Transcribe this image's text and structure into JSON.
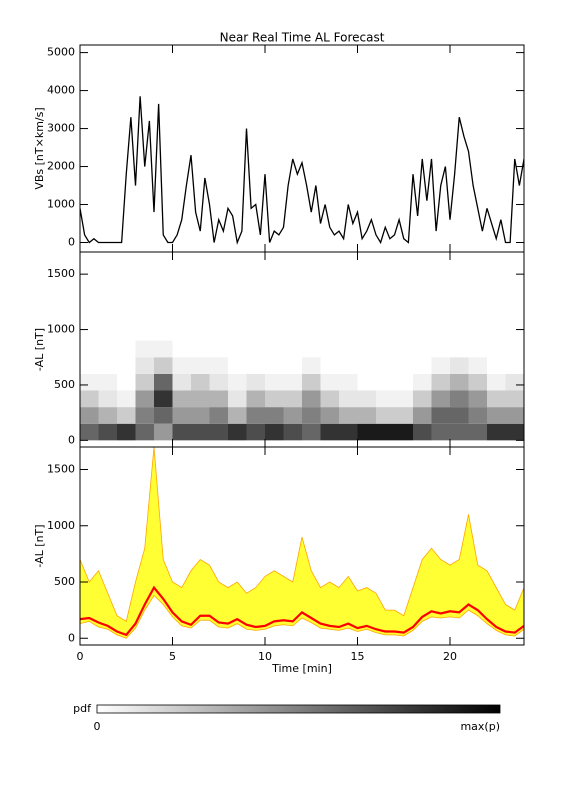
{
  "chart_data": [
    {
      "type": "line",
      "title": "Near Real Time AL Forecast",
      "ylabel": "VBs [nT×km/s]",
      "color": "#000000",
      "xlim": [
        0,
        24
      ],
      "ylim": [
        -250,
        5200
      ],
      "yticks": [
        0,
        1000,
        2000,
        3000,
        4000,
        5000
      ],
      "x": [
        0,
        0.25,
        0.5,
        0.75,
        1,
        1.25,
        1.5,
        1.75,
        2,
        2.25,
        2.5,
        2.75,
        3,
        3.25,
        3.5,
        3.75,
        4,
        4.25,
        4.5,
        4.75,
        5,
        5.25,
        5.5,
        5.75,
        6,
        6.25,
        6.5,
        6.75,
        7,
        7.25,
        7.5,
        7.75,
        8,
        8.25,
        8.5,
        8.75,
        9,
        9.25,
        9.5,
        9.75,
        10,
        10.25,
        10.5,
        10.75,
        11,
        11.25,
        11.5,
        11.75,
        12,
        12.25,
        12.5,
        12.75,
        13,
        13.25,
        13.5,
        13.75,
        14,
        14.25,
        14.5,
        14.75,
        15,
        15.25,
        15.5,
        15.75,
        16,
        16.25,
        16.5,
        16.75,
        17,
        17.25,
        17.5,
        17.75,
        18,
        18.25,
        18.5,
        18.75,
        19,
        19.25,
        19.5,
        19.75,
        20,
        20.25,
        20.5,
        20.75,
        21,
        21.25,
        21.5,
        21.75,
        22,
        22.25,
        22.5,
        22.75,
        23,
        23.25,
        23.5,
        23.75,
        24
      ],
      "values": [
        900,
        200,
        0,
        100,
        0,
        0,
        0,
        0,
        0,
        0,
        1800,
        3300,
        1500,
        3850,
        2000,
        3200,
        800,
        3650,
        200,
        0,
        0,
        200,
        600,
        1500,
        2300,
        800,
        300,
        1700,
        1000,
        0,
        600,
        300,
        900,
        700,
        0,
        300,
        3000,
        900,
        1000,
        200,
        1800,
        0,
        300,
        200,
        400,
        1500,
        2200,
        1800,
        2100,
        1500,
        800,
        1500,
        500,
        1000,
        400,
        200,
        300,
        100,
        1000,
        500,
        800,
        100,
        300,
        600,
        200,
        0,
        400,
        100,
        200,
        600,
        100,
        0,
        1800,
        700,
        2200,
        1100,
        2200,
        300,
        1500,
        2000,
        600,
        1800,
        3300,
        2800,
        2400,
        1500,
        900,
        300,
        900,
        500,
        100,
        600,
        0,
        0,
        2200,
        1500,
        2200
      ]
    },
    {
      "type": "heatmap",
      "ylabel": "-AL [nT]",
      "color": "#000000",
      "xlim": [
        0,
        24
      ],
      "ylim": [
        -60,
        1700
      ],
      "yticks": [
        0,
        500,
        1000,
        1500
      ],
      "x_bins": [
        0,
        1,
        2,
        3,
        4,
        5,
        6,
        7,
        8,
        9,
        10,
        11,
        12,
        13,
        14,
        15,
        16,
        17,
        18,
        19,
        20,
        21,
        22,
        23,
        24
      ],
      "y_bins": [
        0,
        150,
        300,
        450,
        600,
        750,
        900
      ],
      "z": [
        [
          0.6,
          0.4,
          0.2,
          0.05,
          0,
          0
        ],
        [
          0.7,
          0.3,
          0.1,
          0.05,
          0,
          0
        ],
        [
          0.8,
          0.2,
          0.05,
          0,
          0,
          0
        ],
        [
          0.6,
          0.5,
          0.4,
          0.2,
          0.1,
          0.05
        ],
        [
          0.4,
          0.6,
          0.8,
          0.6,
          0.2,
          0.05
        ],
        [
          0.7,
          0.4,
          0.3,
          0.1,
          0.05,
          0
        ],
        [
          0.7,
          0.4,
          0.3,
          0.2,
          0.05,
          0
        ],
        [
          0.7,
          0.5,
          0.3,
          0.1,
          0.05,
          0
        ],
        [
          0.8,
          0.3,
          0.1,
          0.05,
          0,
          0
        ],
        [
          0.7,
          0.5,
          0.3,
          0.1,
          0,
          0
        ],
        [
          0.8,
          0.5,
          0.2,
          0.05,
          0,
          0
        ],
        [
          0.7,
          0.4,
          0.2,
          0.05,
          0,
          0
        ],
        [
          0.6,
          0.5,
          0.4,
          0.2,
          0.05,
          0
        ],
        [
          0.8,
          0.4,
          0.2,
          0.05,
          0,
          0
        ],
        [
          0.8,
          0.3,
          0.1,
          0.05,
          0,
          0
        ],
        [
          0.9,
          0.3,
          0.1,
          0,
          0,
          0
        ],
        [
          0.9,
          0.2,
          0.05,
          0,
          0,
          0
        ],
        [
          0.9,
          0.2,
          0.05,
          0,
          0,
          0
        ],
        [
          0.7,
          0.4,
          0.2,
          0.05,
          0,
          0
        ],
        [
          0.6,
          0.6,
          0.4,
          0.2,
          0.05,
          0
        ],
        [
          0.6,
          0.6,
          0.5,
          0.3,
          0.1,
          0
        ],
        [
          0.6,
          0.5,
          0.4,
          0.2,
          0.05,
          0
        ],
        [
          0.8,
          0.4,
          0.2,
          0.05,
          0,
          0
        ],
        [
          0.8,
          0.4,
          0.2,
          0.1,
          0,
          0
        ]
      ]
    },
    {
      "type": "band",
      "ylabel": "-AL [nT]",
      "xlabel": "Time [min]",
      "xlim": [
        0,
        24
      ],
      "xticks": [
        0,
        5,
        10,
        15,
        20
      ],
      "ylim": [
        -60,
        1700
      ],
      "yticks": [
        0,
        500,
        1000,
        1500
      ],
      "x": [
        0,
        0.5,
        1,
        1.5,
        2,
        2.5,
        3,
        3.5,
        4,
        4.5,
        5,
        5.5,
        6,
        6.5,
        7,
        7.5,
        8,
        8.5,
        9,
        9.5,
        10,
        10.5,
        11,
        11.5,
        12,
        12.5,
        13,
        13.5,
        14,
        14.5,
        15,
        15.5,
        16,
        16.5,
        17,
        17.5,
        18,
        18.5,
        19,
        19.5,
        20,
        20.5,
        21,
        21.5,
        22,
        22.5,
        23,
        23.5,
        24
      ],
      "range": {
        "color": "#ffff33",
        "edge_color": "#ffa500",
        "low": [
          130,
          150,
          100,
          80,
          30,
          0,
          90,
          250,
          380,
          300,
          190,
          110,
          90,
          160,
          160,
          100,
          90,
          130,
          80,
          70,
          80,
          110,
          120,
          110,
          180,
          140,
          90,
          80,
          70,
          90,
          60,
          80,
          50,
          30,
          30,
          20,
          70,
          150,
          190,
          180,
          190,
          180,
          250,
          200,
          130,
          70,
          30,
          20,
          80
        ],
        "high": [
          700,
          500,
          600,
          400,
          200,
          150,
          500,
          800,
          1700,
          700,
          500,
          450,
          600,
          700,
          650,
          500,
          450,
          500,
          400,
          450,
          550,
          600,
          550,
          500,
          900,
          600,
          450,
          500,
          450,
          550,
          420,
          450,
          400,
          250,
          250,
          200,
          450,
          700,
          800,
          700,
          650,
          700,
          1100,
          650,
          600,
          450,
          300,
          250,
          450
        ]
      },
      "median": {
        "color": "#ff0000",
        "values": [
          170,
          180,
          140,
          110,
          60,
          30,
          130,
          300,
          450,
          350,
          230,
          150,
          120,
          200,
          200,
          140,
          130,
          170,
          120,
          100,
          110,
          150,
          160,
          150,
          230,
          180,
          130,
          110,
          100,
          130,
          90,
          110,
          80,
          60,
          60,
          50,
          100,
          190,
          240,
          220,
          240,
          230,
          300,
          250,
          170,
          100,
          60,
          50,
          110
        ]
      }
    }
  ],
  "colorbar": {
    "label": "pdf",
    "min_label": "0",
    "max_label": "max(p)",
    "min_color": "#ffffff",
    "max_color": "#000000"
  }
}
